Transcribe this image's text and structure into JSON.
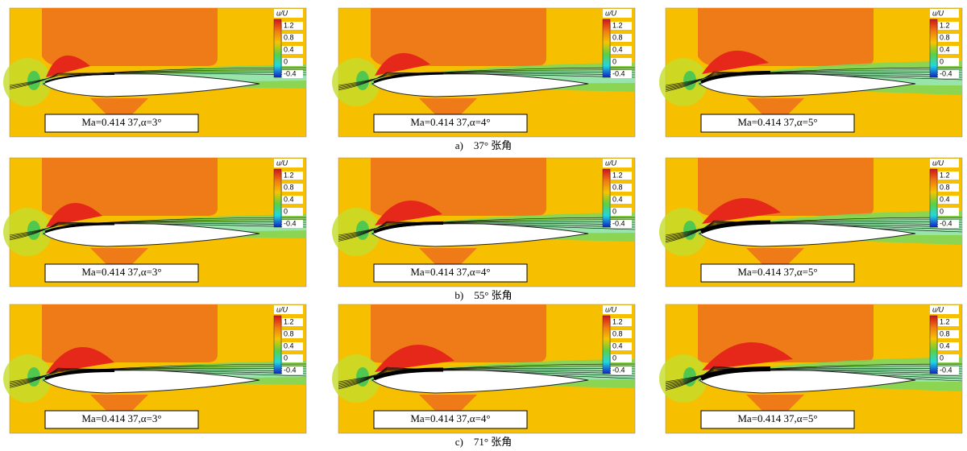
{
  "colorbar": {
    "title": "u/U",
    "ticks": [
      "1.2",
      "0.8",
      "0.4",
      "0",
      "-0.4"
    ]
  },
  "rows": [
    {
      "caption": "a)　37° 张角",
      "panels": [
        {
          "label": "Ma=0.414 37,α=3°"
        },
        {
          "label": "Ma=0.414 37,α=4°"
        },
        {
          "label": "Ma=0.414 37,α=5°"
        }
      ]
    },
    {
      "caption": "b)　55° 张角",
      "panels": [
        {
          "label": "Ma=0.414 37,α=3°"
        },
        {
          "label": "Ma=0.414 37,α=4°"
        },
        {
          "label": "Ma=0.414 37,α=5°"
        }
      ]
    },
    {
      "caption": "c)　71° 张角",
      "panels": [
        {
          "label": "Ma=0.414 37,α=3°"
        },
        {
          "label": "Ma=0.414 37,α=4°"
        },
        {
          "label": "Ma=0.414 37,α=5°"
        }
      ]
    }
  ]
}
